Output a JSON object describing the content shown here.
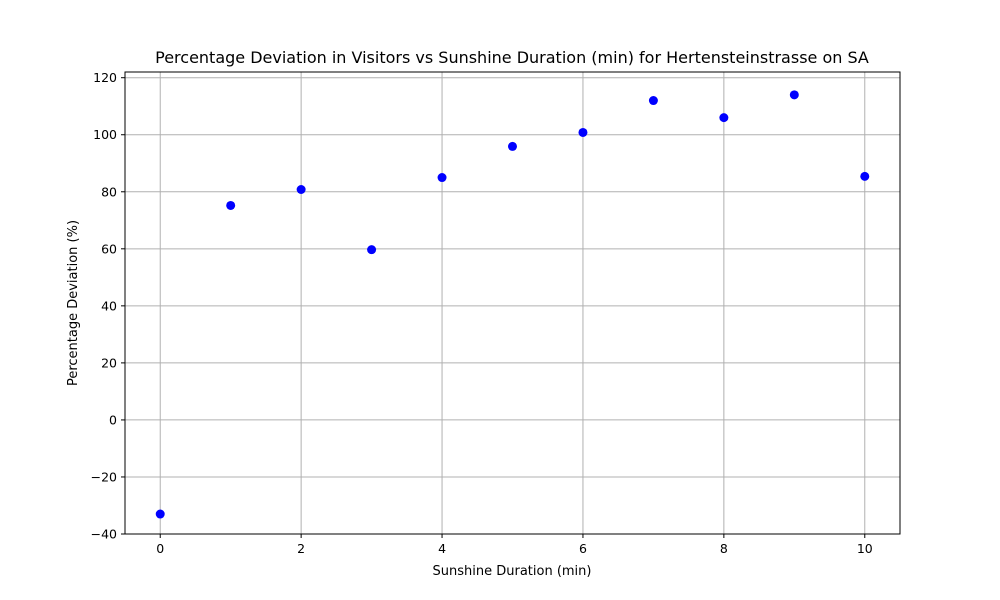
{
  "chart_data": {
    "type": "scatter",
    "title": "Percentage Deviation in Visitors vs Sunshine Duration (min) for Hertensteinstrasse on SA",
    "xlabel": "Sunshine Duration (min)",
    "ylabel": "Percentage Deviation (%)",
    "x": [
      0,
      1,
      2,
      3,
      4,
      5,
      6,
      7,
      8,
      9,
      10
    ],
    "y": [
      -33,
      75.2,
      80.8,
      59.7,
      85,
      95.9,
      100.8,
      112,
      106,
      114,
      85.4
    ],
    "xlim": [
      -0.5,
      10.5
    ],
    "ylim": [
      -40,
      122
    ],
    "xticks": [
      0,
      2,
      4,
      6,
      8,
      10
    ],
    "yticks": [
      -40,
      -20,
      0,
      20,
      40,
      60,
      80,
      100,
      120
    ],
    "xtick_labels": [
      "0",
      "2",
      "4",
      "6",
      "8",
      "10"
    ],
    "ytick_labels": [
      "−40",
      "−20",
      "0",
      "20",
      "40",
      "60",
      "80",
      "100",
      "120"
    ],
    "grid": true,
    "marker_color": "#0000ff",
    "grid_color": "#b0b0b0"
  }
}
